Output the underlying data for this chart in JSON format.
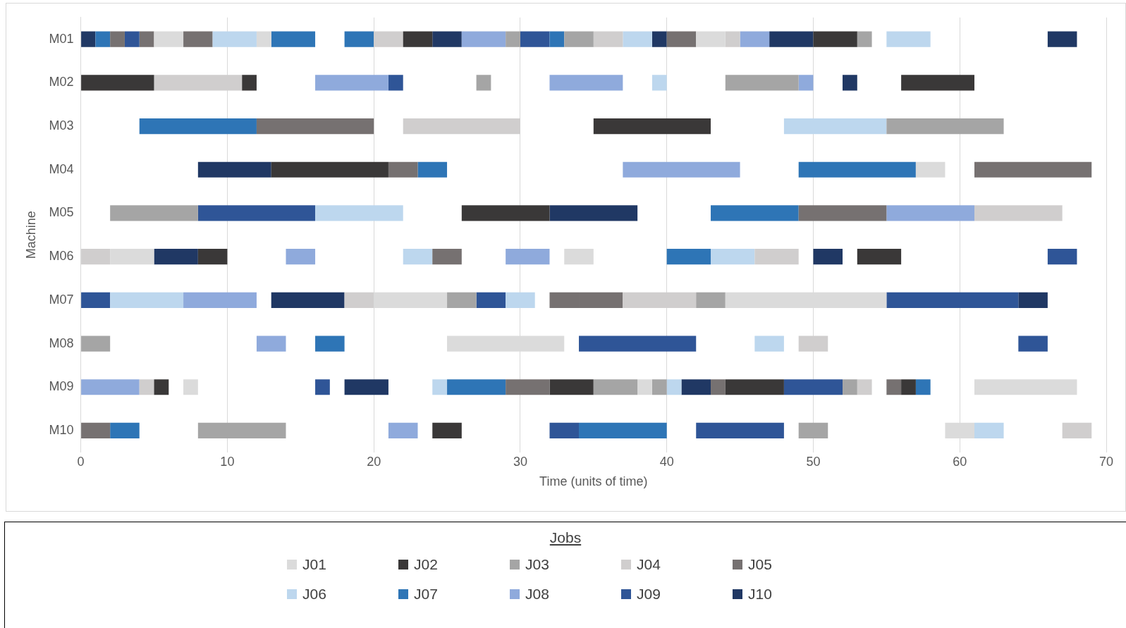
{
  "chart_data": {
    "type": "bar",
    "orientation": "horizontal",
    "xlabel": "Time (units of time)",
    "ylabel": "Machine",
    "legend_title": "Jobs",
    "legend": "bottom",
    "grid": "x",
    "categories": [
      "M01",
      "M02",
      "M03",
      "M04",
      "M05",
      "M06",
      "M07",
      "M08",
      "M09",
      "M10"
    ],
    "xlim": [
      0,
      70
    ],
    "xticks": [
      0,
      10,
      20,
      30,
      40,
      50,
      60,
      70
    ],
    "series": [
      {
        "name": "J01",
        "color": "#dbdbdb",
        "base": [
          5,
          null,
          null,
          57,
          null,
          2,
          20,
          25,
          7,
          59
        ],
        "values": [
          2,
          null,
          null,
          2,
          null,
          3,
          5,
          8,
          1,
          2
        ]
      },
      {
        "name": "J02",
        "color": "#3a3838",
        "base": [
          22,
          0,
          35,
          13,
          26,
          8,
          null,
          null,
          5,
          24
        ],
        "values": [
          2,
          5,
          8,
          8,
          6,
          2,
          null,
          null,
          1,
          2
        ]
      },
      {
        "name": "J03",
        "color": "#a5a5a5",
        "base": [
          29,
          27,
          55,
          null,
          2,
          null,
          25,
          0,
          35,
          8
        ],
        "values": [
          1,
          1,
          8,
          null,
          6,
          null,
          2,
          2,
          3,
          6
        ]
      },
      {
        "name": "J04",
        "color": "#d0cece",
        "base": [
          20,
          5,
          22,
          null,
          61,
          0,
          18,
          49,
          4,
          67
        ],
        "values": [
          2,
          6,
          8,
          null,
          6,
          2,
          2,
          2,
          1,
          2
        ]
      },
      {
        "name": "J05",
        "color": "#767171",
        "base": [
          2,
          null,
          12,
          21,
          49,
          24,
          32,
          null,
          29,
          0
        ],
        "values": [
          1,
          null,
          8,
          2,
          6,
          2,
          2,
          null,
          3,
          2
        ]
      },
      {
        "name": "J06",
        "color": "#bdd7ee",
        "base": [
          9,
          39,
          48,
          null,
          16,
          22,
          2,
          46,
          24,
          61
        ],
        "values": [
          3,
          1,
          7,
          null,
          6,
          2,
          5,
          2,
          1,
          2
        ]
      },
      {
        "name": "J07",
        "color": "#2e75b6",
        "base": [
          1,
          null,
          4,
          23,
          43,
          40,
          null,
          16,
          25,
          2
        ],
        "values": [
          1,
          null,
          8,
          2,
          6,
          3,
          null,
          2,
          4,
          2
        ]
      },
      {
        "name": "J08",
        "color": "#8faadc",
        "base": [
          26,
          16,
          null,
          37,
          55,
          14,
          7,
          12,
          0,
          21
        ],
        "values": [
          3,
          5,
          null,
          8,
          6,
          2,
          5,
          2,
          4,
          2
        ]
      },
      {
        "name": "J09",
        "color": "#2f5597",
        "base": [
          3,
          21,
          null,
          null,
          8,
          66,
          0,
          34,
          16,
          32
        ],
        "values": [
          1,
          1,
          null,
          null,
          8,
          2,
          2,
          8,
          1,
          2
        ]
      },
      {
        "name": "J10",
        "color": "#203864",
        "base": [
          0,
          52,
          null,
          8,
          32,
          5,
          13,
          null,
          18,
          null
        ],
        "values": [
          1,
          1,
          null,
          5,
          6,
          3,
          5,
          null,
          3,
          null
        ]
      },
      {
        "color": "#dbdbdb",
        "base": [
          12,
          null,
          null,
          null,
          null,
          33,
          44,
          null,
          38,
          null
        ],
        "values": [
          1,
          null,
          null,
          null,
          null,
          2,
          11,
          null,
          1,
          null
        ]
      },
      {
        "color": "#dbdbdb",
        "base": [
          42,
          null,
          null,
          null,
          null,
          null,
          null,
          null,
          61,
          null
        ],
        "values": [
          2,
          null,
          null,
          null,
          null,
          null,
          null,
          null,
          7,
          null
        ]
      },
      {
        "color": "#3a3838",
        "base": [
          50,
          11,
          null,
          null,
          null,
          53,
          null,
          null,
          32,
          null
        ],
        "values": [
          3,
          1,
          null,
          null,
          null,
          3,
          null,
          null,
          3,
          null
        ]
      },
      {
        "color": "#3a3838",
        "base": [
          null,
          56,
          null,
          null,
          null,
          null,
          null,
          null,
          44,
          null
        ],
        "values": [
          null,
          5,
          null,
          null,
          null,
          null,
          null,
          null,
          4,
          null
        ]
      },
      {
        "color": "#3a3838",
        "base": [
          null,
          null,
          null,
          null,
          null,
          null,
          null,
          null,
          56,
          null
        ],
        "values": [
          null,
          null,
          null,
          null,
          null,
          null,
          null,
          null,
          1,
          null
        ]
      },
      {
        "color": "#a5a5a5",
        "base": [
          33,
          44,
          null,
          null,
          null,
          null,
          42,
          null,
          39,
          49
        ],
        "values": [
          2,
          5,
          null,
          null,
          null,
          null,
          2,
          null,
          1,
          2
        ]
      },
      {
        "color": "#a5a5a5",
        "base": [
          53,
          null,
          null,
          null,
          null,
          null,
          null,
          null,
          52,
          null
        ],
        "values": [
          1,
          null,
          null,
          null,
          null,
          null,
          null,
          null,
          1,
          null
        ]
      },
      {
        "color": "#d0cece",
        "base": [
          35,
          null,
          null,
          null,
          null,
          46,
          37,
          null,
          53,
          null
        ],
        "values": [
          2,
          null,
          null,
          null,
          null,
          3,
          5,
          null,
          1,
          null
        ]
      },
      {
        "color": "#d0cece",
        "base": [
          44,
          null,
          null,
          null,
          null,
          null,
          null,
          null,
          null,
          null
        ],
        "values": [
          1,
          null,
          null,
          null,
          null,
          null,
          null,
          null,
          null,
          null
        ]
      },
      {
        "color": "#767171",
        "base": [
          4,
          null,
          null,
          61,
          null,
          null,
          34,
          null,
          43,
          null
        ],
        "values": [
          1,
          null,
          null,
          8,
          null,
          null,
          3,
          null,
          1,
          null
        ]
      },
      {
        "color": "#767171",
        "base": [
          7,
          null,
          null,
          null,
          null,
          null,
          null,
          null,
          55,
          null
        ],
        "values": [
          2,
          null,
          null,
          null,
          null,
          null,
          null,
          null,
          1,
          null
        ]
      },
      {
        "color": "#767171",
        "base": [
          40,
          null,
          null,
          null,
          null,
          null,
          null,
          null,
          null,
          null
        ],
        "values": [
          2,
          null,
          null,
          null,
          null,
          null,
          null,
          null,
          null,
          null
        ]
      },
      {
        "color": "#bdd7ee",
        "base": [
          37,
          null,
          null,
          null,
          null,
          43,
          29,
          null,
          40,
          null
        ],
        "values": [
          2,
          null,
          null,
          null,
          null,
          3,
          2,
          null,
          1,
          null
        ]
      },
      {
        "color": "#bdd7ee",
        "base": [
          55,
          null,
          null,
          null,
          null,
          null,
          null,
          null,
          null,
          null
        ],
        "values": [
          3,
          null,
          null,
          null,
          null,
          null,
          null,
          null,
          null,
          null
        ]
      },
      {
        "color": "#2e75b6",
        "base": [
          13,
          null,
          null,
          49,
          null,
          null,
          null,
          null,
          57,
          34
        ],
        "values": [
          3,
          null,
          null,
          8,
          null,
          null,
          null,
          null,
          1,
          6
        ]
      },
      {
        "color": "#2e75b6",
        "base": [
          18,
          null,
          null,
          null,
          null,
          null,
          null,
          null,
          null,
          null
        ],
        "values": [
          2,
          null,
          null,
          null,
          null,
          null,
          null,
          null,
          null,
          null
        ]
      },
      {
        "color": "#2e75b6",
        "base": [
          32,
          null,
          null,
          null,
          null,
          null,
          null,
          null,
          null,
          null
        ],
        "values": [
          1,
          null,
          null,
          null,
          null,
          null,
          null,
          null,
          null,
          null
        ]
      },
      {
        "color": "#8faadc",
        "base": [
          45,
          32,
          null,
          null,
          null,
          29,
          null,
          null,
          null,
          null
        ],
        "values": [
          2,
          5,
          null,
          null,
          null,
          3,
          null,
          null,
          null,
          null
        ]
      },
      {
        "color": "#8faadc",
        "base": [
          null,
          49,
          null,
          null,
          null,
          null,
          null,
          null,
          null,
          null
        ],
        "values": [
          null,
          1,
          null,
          null,
          null,
          null,
          null,
          null,
          null,
          null
        ]
      },
      {
        "color": "#2f5597",
        "base": [
          30,
          null,
          null,
          null,
          null,
          null,
          27,
          64,
          48,
          42
        ],
        "values": [
          2,
          null,
          null,
          null,
          null,
          null,
          2,
          2,
          4,
          6
        ]
      },
      {
        "color": "#2f5597",
        "base": [
          null,
          null,
          null,
          null,
          null,
          null,
          55,
          null,
          null,
          null
        ],
        "values": [
          null,
          null,
          null,
          null,
          null,
          null,
          9,
          null,
          null,
          null
        ]
      },
      {
        "color": "#203864",
        "base": [
          24,
          null,
          null,
          null,
          null,
          50,
          64,
          null,
          41,
          null
        ],
        "values": [
          2,
          null,
          null,
          null,
          null,
          2,
          2,
          null,
          2,
          null
        ]
      },
      {
        "color": "#203864",
        "base": [
          39,
          null,
          null,
          null,
          null,
          null,
          null,
          null,
          null,
          null
        ],
        "values": [
          1,
          null,
          null,
          null,
          null,
          null,
          null,
          null,
          null,
          null
        ]
      },
      {
        "color": "#203864",
        "base": [
          47,
          null,
          null,
          null,
          null,
          null,
          null,
          null,
          null,
          null
        ],
        "values": [
          3,
          null,
          null,
          null,
          null,
          null,
          null,
          null,
          null,
          null
        ]
      },
      {
        "color": "#203864",
        "base": [
          66,
          null,
          null,
          null,
          null,
          null,
          null,
          null,
          null,
          null
        ],
        "values": [
          2,
          null,
          null,
          null,
          null,
          null,
          null,
          null,
          null,
          null
        ]
      }
    ]
  }
}
